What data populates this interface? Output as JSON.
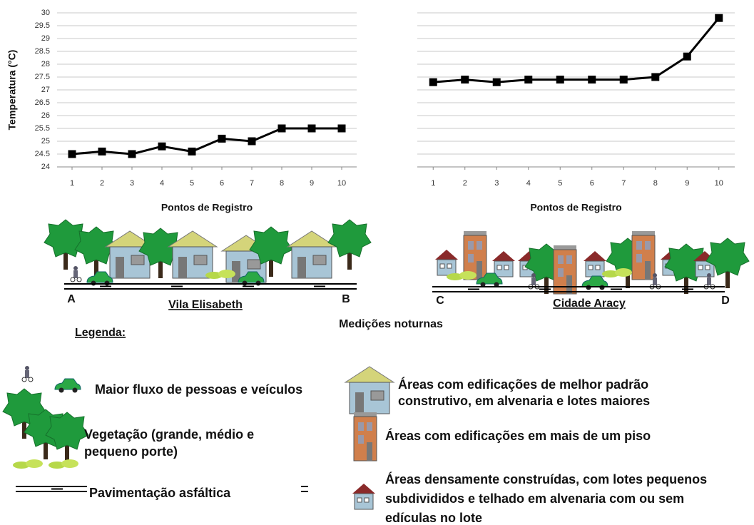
{
  "chart_data": [
    {
      "type": "line",
      "y_label": "Temperatura (°C)",
      "x_label": "Pontos de Registro",
      "x": [
        1,
        2,
        3,
        4,
        5,
        6,
        7,
        8,
        9,
        10
      ],
      "values": [
        24.5,
        24.6,
        24.5,
        24.8,
        24.6,
        25.1,
        25.0,
        25.5,
        25.5,
        25.5
      ],
      "color": "#000000",
      "xlim": [
        0.5,
        10.5
      ],
      "xticks": [
        1,
        2,
        3,
        4,
        5,
        6,
        7,
        8,
        9,
        10
      ],
      "ylim": [
        24,
        30
      ],
      "yticks": [
        24,
        24.5,
        25,
        25.5,
        26,
        26.5,
        27,
        27.5,
        28,
        28.5,
        29,
        29.5,
        30
      ],
      "grid": true,
      "show_ytick_labels": true
    },
    {
      "type": "line",
      "x_label": "Pontos de Registro",
      "x": [
        1,
        2,
        3,
        4,
        5,
        6,
        7,
        8,
        9,
        10
      ],
      "values": [
        27.3,
        27.4,
        27.3,
        27.4,
        27.4,
        27.4,
        27.4,
        27.5,
        28.3,
        29.8
      ],
      "color": "#000000",
      "xlim": [
        0.5,
        10.5
      ],
      "xticks": [
        1,
        2,
        3,
        4,
        5,
        6,
        7,
        8,
        9,
        10
      ],
      "ylim": [
        24,
        30
      ],
      "yticks": [
        24,
        24.5,
        25,
        25.5,
        26,
        26.5,
        27,
        27.5,
        28,
        28.5,
        29,
        29.5,
        30
      ],
      "grid": true,
      "show_ytick_labels": false
    }
  ],
  "illustration": {
    "left": {
      "start": "A",
      "end": "B",
      "name": "Vila Elisabeth"
    },
    "right": {
      "start": "C",
      "end": "D",
      "name": "Cidade Aracy"
    },
    "caption": "Medições noturnas"
  },
  "legend": {
    "title": "Legenda:",
    "items": [
      {
        "lines": [
          "Maior fluxo de pessoas e veículos"
        ]
      },
      {
        "lines": [
          "Vegetação (grande, médio e",
          "pequeno porte)"
        ]
      },
      {
        "lines": [
          "Pavimentação asfáltica"
        ]
      },
      {
        "lines": [
          "Áreas com edificações de melhor padrão",
          "construtivo, em alvenaria e lotes maiores"
        ]
      },
      {
        "lines": [
          "Áreas com edificações em mais de um piso"
        ]
      },
      {
        "lines": [
          "Áreas densamente construídas, com lotes pequenos",
          "subdivididos e telhado em alvenaria com ou sem",
          "edículas no lote"
        ]
      }
    ]
  }
}
